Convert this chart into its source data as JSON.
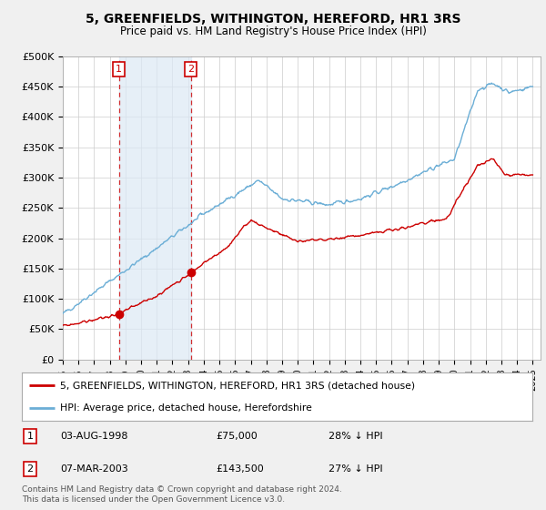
{
  "title": "5, GREENFIELDS, WITHINGTON, HEREFORD, HR1 3RS",
  "subtitle": "Price paid vs. HM Land Registry's House Price Index (HPI)",
  "ylabel_ticks": [
    "£0",
    "£50K",
    "£100K",
    "£150K",
    "£200K",
    "£250K",
    "£300K",
    "£350K",
    "£400K",
    "£450K",
    "£500K"
  ],
  "ytick_values": [
    0,
    50000,
    100000,
    150000,
    200000,
    250000,
    300000,
    350000,
    400000,
    450000,
    500000
  ],
  "ylim": [
    0,
    500000
  ],
  "xlim_start": 1995.0,
  "xlim_end": 2025.5,
  "sale1_year": 1998.58,
  "sale1_price": 75000,
  "sale2_year": 2003.17,
  "sale2_price": 143500,
  "sale1_date": "03-AUG-1998",
  "sale1_pct": "28% ↓ HPI",
  "sale2_date": "07-MAR-2003",
  "sale2_pct": "27% ↓ HPI",
  "hpi_color": "#6baed6",
  "price_color": "#cc0000",
  "legend_label1": "5, GREENFIELDS, WITHINGTON, HEREFORD, HR1 3RS (detached house)",
  "legend_label2": "HPI: Average price, detached house, Herefordshire",
  "footnote": "Contains HM Land Registry data © Crown copyright and database right 2024.\nThis data is licensed under the Open Government Licence v3.0.",
  "background_color": "#f0f0f0",
  "plot_bg_color": "#ffffff",
  "shade_color": "#dce9f5",
  "shade_alpha": 0.7
}
